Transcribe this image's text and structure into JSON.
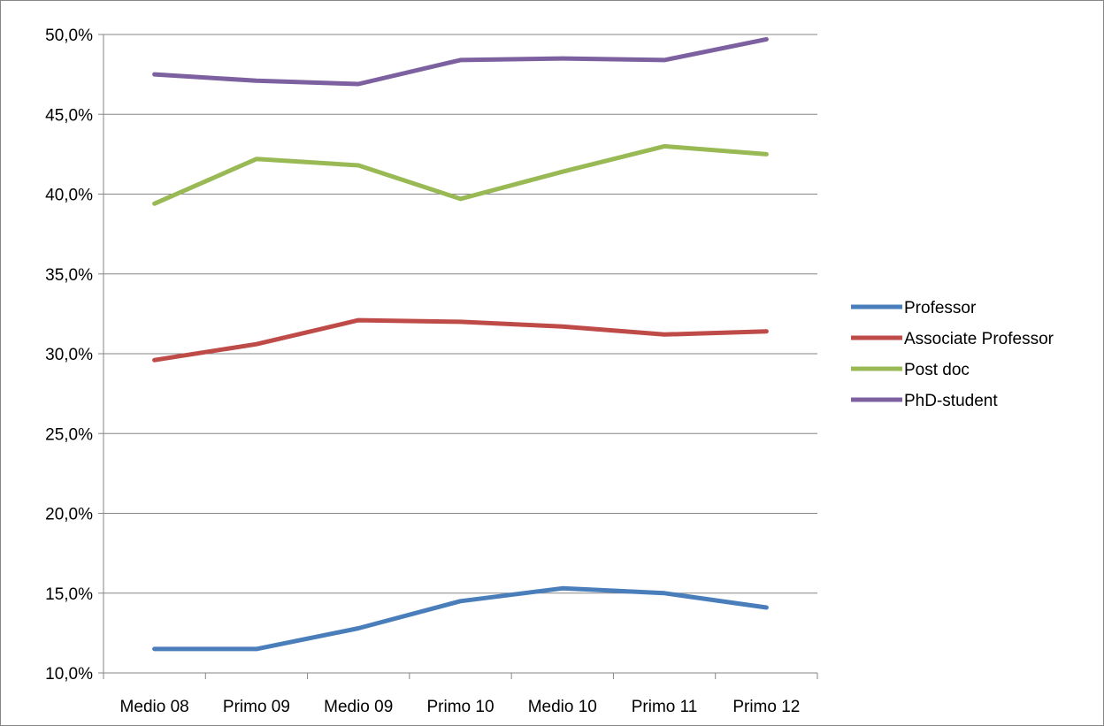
{
  "chart_data": {
    "type": "line",
    "categories": [
      "Medio 08",
      "Primo 09",
      "Medio 09",
      "Primo 10",
      "Medio 10",
      "Primo 11",
      "Primo 12"
    ],
    "series": [
      {
        "name": "Professor",
        "color": "#4a7ebb",
        "values": [
          11.5,
          11.5,
          12.8,
          14.5,
          15.3,
          15.0,
          14.1
        ]
      },
      {
        "name": "Associate Professor",
        "color": "#be4b48",
        "values": [
          29.6,
          30.6,
          32.1,
          32.0,
          31.7,
          31.2,
          31.4
        ]
      },
      {
        "name": "Post doc",
        "color": "#98b954",
        "values": [
          39.4,
          42.2,
          41.8,
          39.7,
          41.4,
          43.0,
          42.5
        ]
      },
      {
        "name": "PhD-student",
        "color": "#7d60a0",
        "values": [
          47.5,
          47.1,
          46.9,
          48.4,
          48.5,
          48.4,
          49.7
        ]
      }
    ],
    "ylim": [
      10,
      50
    ],
    "yticks": [
      "10,0%",
      "15,0%",
      "20,0%",
      "25,0%",
      "30,0%",
      "35,0%",
      "40,0%",
      "45,0%",
      "50,0%"
    ],
    "grid": true,
    "legend_position": "right",
    "title": "",
    "xlabel": "",
    "ylabel": ""
  }
}
